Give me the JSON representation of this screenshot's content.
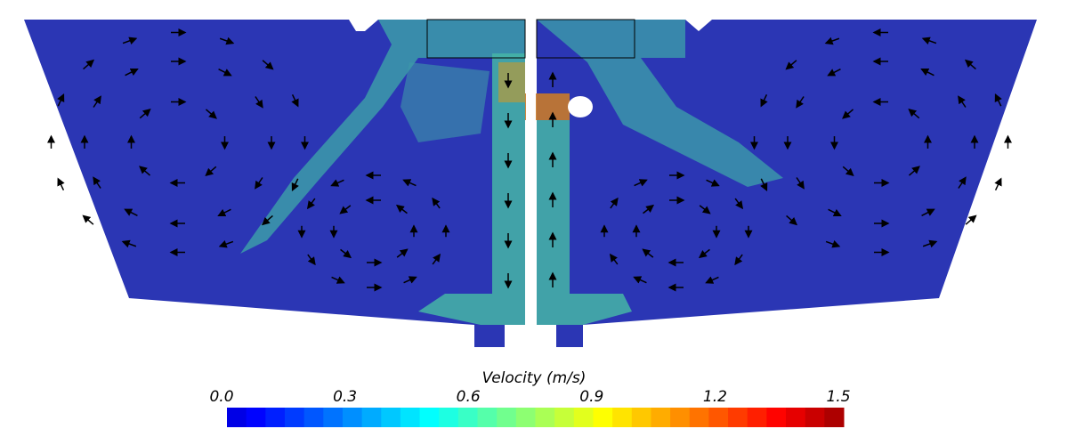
{
  "colorbar": {
    "title": "Velocity (m/s)",
    "range": [
      0,
      1.5
    ],
    "ticks": [
      {
        "value": 0,
        "label": "0.0"
      },
      0.3,
      0.6,
      0.9,
      1.2,
      1.5
    ]
  }
}
